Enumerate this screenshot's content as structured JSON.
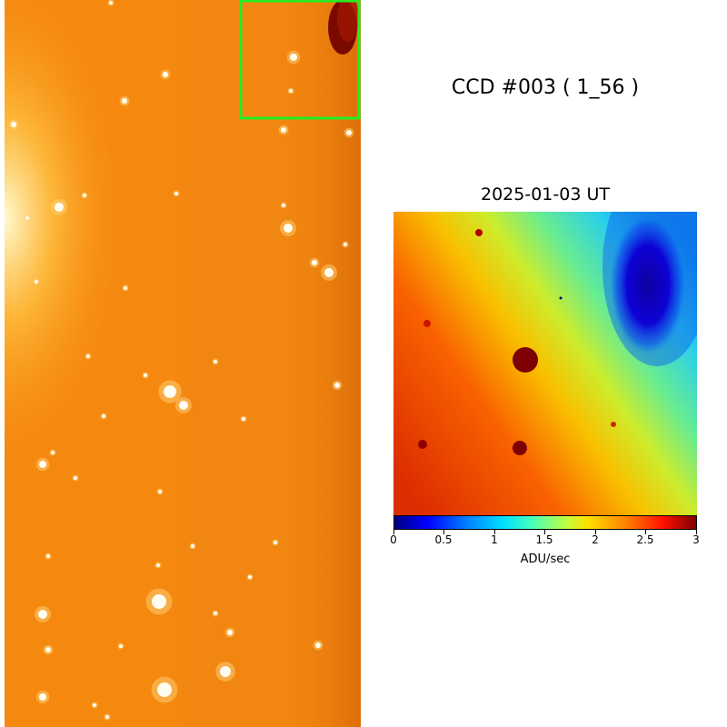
{
  "header": {
    "ccd_title": "CCD #003 ( 1_56 )"
  },
  "zoom": {
    "date_title": "2025-01-03 UT"
  },
  "colorbar": {
    "ticks": [
      "0",
      "0.5",
      "1",
      "1.5",
      "2",
      "2.5",
      "3"
    ],
    "label": "ADU/sec",
    "range": [
      0,
      3
    ]
  },
  "colors": {
    "left_background": "#f5890f",
    "highlight_box": "#22ee22",
    "zoom_colormap": "jet"
  }
}
